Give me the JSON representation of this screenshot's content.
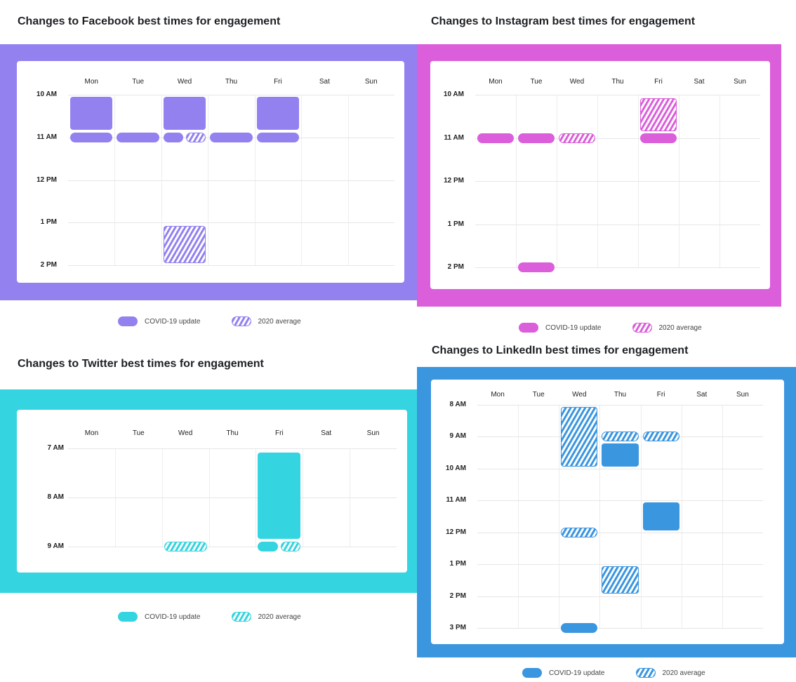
{
  "legend": {
    "covid": "COVID-19 update",
    "avg": "2020 average"
  },
  "chart_data": [
    {
      "type": "heatmap",
      "title": "Changes to Facebook best times for engagement",
      "color": "#9381f0",
      "days": [
        "Mon",
        "Tue",
        "Wed",
        "Thu",
        "Fri",
        "Sat",
        "Sun"
      ],
      "time_labels": [
        "10 AM",
        "11 AM",
        "12 PM",
        "1 PM",
        "2 PM"
      ],
      "time_range": [
        10,
        14
      ],
      "blocks": [
        {
          "day": "Mon",
          "start": 10.05,
          "end": 10.82,
          "kind": "covid"
        },
        {
          "day": "Mon",
          "at": 11,
          "kind": "covid"
        },
        {
          "day": "Tue",
          "at": 11,
          "kind": "covid"
        },
        {
          "day": "Wed",
          "start": 10.05,
          "end": 10.82,
          "kind": "covid"
        },
        {
          "day": "Wed",
          "at": 11,
          "kind": "covid",
          "half": "left"
        },
        {
          "day": "Wed",
          "at": 11,
          "kind": "avg",
          "half": "right"
        },
        {
          "day": "Thu",
          "at": 11,
          "kind": "covid"
        },
        {
          "day": "Fri",
          "start": 10.05,
          "end": 10.82,
          "kind": "covid"
        },
        {
          "day": "Fri",
          "at": 11,
          "kind": "covid"
        },
        {
          "day": "Wed",
          "start": 13.08,
          "end": 13.95,
          "kind": "avg"
        }
      ]
    },
    {
      "type": "heatmap",
      "title": "Changes to Instagram best times for engagement",
      "color": "#db5fdb",
      "days": [
        "Mon",
        "Tue",
        "Wed",
        "Thu",
        "Fri",
        "Sat",
        "Sun"
      ],
      "time_labels": [
        "10 AM",
        "11 AM",
        "12 PM",
        "1 PM",
        "2 PM"
      ],
      "time_range": [
        10,
        14
      ],
      "blocks": [
        {
          "day": "Mon",
          "at": 11,
          "kind": "covid"
        },
        {
          "day": "Tue",
          "at": 11,
          "kind": "covid"
        },
        {
          "day": "Wed",
          "at": 11,
          "kind": "avg"
        },
        {
          "day": "Fri",
          "start": 10.08,
          "end": 10.85,
          "kind": "avg"
        },
        {
          "day": "Fri",
          "at": 11,
          "kind": "covid"
        },
        {
          "day": "Tue",
          "at": 14,
          "kind": "covid"
        }
      ]
    },
    {
      "type": "heatmap",
      "title": "Changes to Twitter best times for engagement",
      "color": "#34d5e0",
      "days": [
        "Mon",
        "Tue",
        "Wed",
        "Thu",
        "Fri",
        "Sat",
        "Sun"
      ],
      "time_labels": [
        "7 AM",
        "8 AM",
        "9 AM"
      ],
      "time_range": [
        7,
        9
      ],
      "blocks": [
        {
          "day": "Fri",
          "start": 7.08,
          "end": 8.85,
          "kind": "covid"
        },
        {
          "day": "Fri",
          "at": 9,
          "kind": "covid",
          "half": "left"
        },
        {
          "day": "Fri",
          "at": 9,
          "kind": "avg",
          "half": "right"
        },
        {
          "day": "Wed",
          "at": 9,
          "kind": "avg"
        }
      ]
    },
    {
      "type": "heatmap",
      "title": "Changes to LinkedIn best times for engagement",
      "color": "#3b96e0",
      "days": [
        "Mon",
        "Tue",
        "Wed",
        "Thu",
        "Fri",
        "Sat",
        "Sun"
      ],
      "time_labels": [
        "8 AM",
        "9 AM",
        "10 AM",
        "11 AM",
        "12 PM",
        "1 PM",
        "2 PM",
        "3 PM"
      ],
      "time_range": [
        8,
        15
      ],
      "blocks": [
        {
          "day": "Wed",
          "start": 8.06,
          "end": 9.94,
          "kind": "avg"
        },
        {
          "day": "Thu",
          "at": 9,
          "kind": "avg"
        },
        {
          "day": "Fri",
          "at": 9,
          "kind": "avg"
        },
        {
          "day": "Thu",
          "start": 9.2,
          "end": 9.94,
          "kind": "covid"
        },
        {
          "day": "Fri",
          "start": 11.07,
          "end": 11.93,
          "kind": "covid"
        },
        {
          "day": "Wed",
          "at": 12,
          "kind": "avg"
        },
        {
          "day": "Thu",
          "start": 13.07,
          "end": 13.93,
          "kind": "avg"
        },
        {
          "day": "Wed",
          "at": 15,
          "kind": "covid"
        }
      ]
    }
  ]
}
